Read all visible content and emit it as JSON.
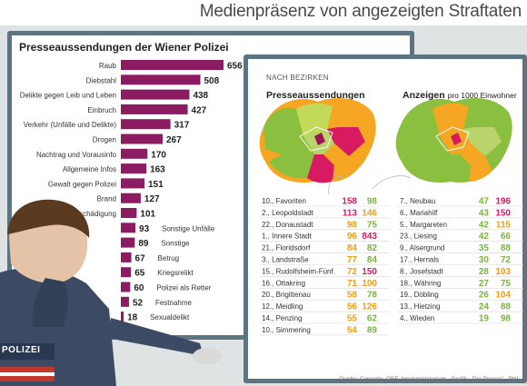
{
  "title": "Medienpräsenz von angezeigten Straftaten",
  "source": "Quelle: Correctiv, ORF, Innenministerium · Grafik: „Die Presse“ · PW",
  "badge_text": "POLIZEI",
  "chart_data": [
    {
      "type": "bar",
      "title": "Presseaussendungen der Wiener Polizei",
      "categories": [
        "Raub",
        "Diebstahl",
        "Delikte gegen Leib und Leben",
        "Einbruch",
        "Verkehr (Unfälle und Delikte)",
        "Drogen",
        "Nachtrag und Vorausinfo",
        "Allgemeine Infos",
        "Gewalt gegen Polizei",
        "Brand",
        "Sachbeschädigung",
        "Sonstige Unfälle",
        "Sonstige",
        "Betrug",
        "Kriegsrelikt",
        "Polizei als Retter",
        "Festnahme",
        "Sexualdelikt"
      ],
      "values": [
        656,
        508,
        438,
        427,
        317,
        267,
        170,
        163,
        151,
        127,
        101,
        93,
        89,
        67,
        65,
        60,
        52,
        18
      ],
      "bar_color": "#8b1c62"
    },
    {
      "type": "table",
      "title": "NACH BEZIRKEN",
      "subtitle_left": "Presseaussendungen",
      "subtitle_right_bold": "Anzeigen",
      "subtitle_right_rest": "pro 1000 Einwohner",
      "value_colors": [
        "#d81b60",
        "#7cb342",
        "#f39c12"
      ],
      "left_rows": [
        {
          "district": "10., Favoriten",
          "press": 158,
          "reports": 98
        },
        {
          "district": "2., Leopoldstadt",
          "press": 113,
          "reports": 146
        },
        {
          "district": "22., Donaustadt",
          "press": 98,
          "reports": 75
        },
        {
          "district": "1., Innere Stadt",
          "press": 96,
          "reports": 843
        },
        {
          "district": "21., Floridsdorf",
          "press": 84,
          "reports": 82
        },
        {
          "district": "3., Landstraße",
          "press": 77,
          "reports": 84
        },
        {
          "district": "15., Rudolfsheim-Fünf.",
          "press": 72,
          "reports": 150
        },
        {
          "district": "16., Ottakring",
          "press": 71,
          "reports": 100
        },
        {
          "district": "20., Brigittenau",
          "press": 58,
          "reports": 78
        },
        {
          "district": "12., Meidling",
          "press": 56,
          "reports": 126
        },
        {
          "district": "14., Penzing",
          "press": 55,
          "reports": 62
        },
        {
          "district": "10., Simmering",
          "press": 54,
          "reports": 89
        }
      ],
      "right_rows": [
        {
          "district": "7., Neubau",
          "press": 47,
          "reports": 196
        },
        {
          "district": "6., Mariahilf",
          "press": 43,
          "reports": 150
        },
        {
          "district": "5., Margareten",
          "press": 42,
          "reports": 115
        },
        {
          "district": "23., Liesing",
          "press": 42,
          "reports": 66
        },
        {
          "district": "9., Alsergrund",
          "press": 35,
          "reports": 88
        },
        {
          "district": "17., Hernals",
          "press": 30,
          "reports": 72
        },
        {
          "district": "8., Josefstadt",
          "press": 28,
          "reports": 103
        },
        {
          "district": "18., Währing",
          "press": 27,
          "reports": 75
        },
        {
          "district": "19., Döbling",
          "press": 26,
          "reports": 104
        },
        {
          "district": "13., Hietzing",
          "press": 24,
          "reports": 88
        },
        {
          "district": "4., Wieden",
          "press": 19,
          "reports": 98
        }
      ]
    }
  ]
}
